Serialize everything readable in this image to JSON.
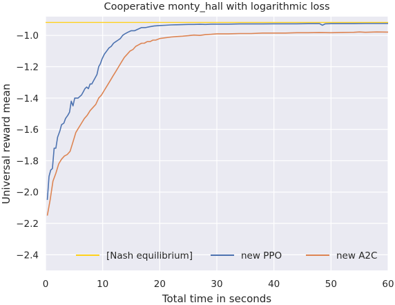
{
  "chart_data": {
    "type": "line",
    "title": "Cooperative monty_hall with logarithmic loss",
    "xlabel": "Total time in seconds",
    "ylabel": "Universal reward mean",
    "xlim": [
      0,
      60
    ],
    "ylim": [
      -2.5,
      -0.88
    ],
    "x_ticks": [
      0,
      10,
      20,
      30,
      40,
      50,
      60
    ],
    "x_tick_labels": [
      "0",
      "10",
      "20",
      "30",
      "40",
      "50",
      "60"
    ],
    "y_ticks": [
      -2.4,
      -2.2,
      -2.0,
      -1.8,
      -1.6,
      -1.4,
      -1.2,
      -1.0
    ],
    "y_tick_labels": [
      "−2.4",
      "−2.2",
      "−2.0",
      "−1.8",
      "−1.6",
      "−1.4",
      "−1.2",
      "−1.0"
    ],
    "grid": true,
    "legend_position": "lower-right",
    "colors": {
      "background": "#eaeaf2",
      "grid": "#ffffff"
    },
    "series": [
      {
        "name": "[Nash equilibrium]",
        "color": "#ffd11a",
        "x": [
          0,
          60
        ],
        "y": [
          -0.917,
          -0.917
        ]
      },
      {
        "name": "new PPO",
        "color": "#4c72b0",
        "x": [
          0.3,
          0.6,
          0.9,
          1.2,
          1.5,
          1.8,
          2.1,
          2.5,
          2.8,
          3.2,
          3.5,
          3.9,
          4.2,
          4.5,
          4.8,
          5.1,
          5.4,
          5.7,
          6.0,
          6.3,
          6.6,
          6.9,
          7.2,
          7.5,
          7.8,
          8.1,
          8.4,
          8.7,
          9.0,
          9.3,
          9.6,
          9.9,
          10.3,
          10.7,
          11.1,
          11.5,
          11.9,
          12.3,
          12.7,
          13.1,
          13.5,
          13.9,
          14.4,
          15.0,
          15.6,
          16.2,
          16.8,
          17.5,
          18.2,
          19.0,
          20.0,
          21.0,
          22.0,
          23.0,
          24.0,
          25.0,
          26.0,
          27.0,
          28.0,
          29.0,
          30.0,
          32.0,
          34.0,
          36.0,
          38.0,
          40.0,
          42.0,
          44.0,
          46.0,
          48.0,
          48.5,
          49.0,
          50.0,
          52.0,
          54.0,
          56.0,
          58.0,
          60.0
        ],
        "y": [
          -2.05,
          -1.9,
          -1.86,
          -1.85,
          -1.72,
          -1.72,
          -1.65,
          -1.61,
          -1.57,
          -1.56,
          -1.53,
          -1.51,
          -1.49,
          -1.42,
          -1.45,
          -1.4,
          -1.4,
          -1.4,
          -1.39,
          -1.38,
          -1.36,
          -1.34,
          -1.33,
          -1.34,
          -1.31,
          -1.31,
          -1.29,
          -1.27,
          -1.25,
          -1.2,
          -1.18,
          -1.15,
          -1.12,
          -1.1,
          -1.08,
          -1.07,
          -1.05,
          -1.04,
          -1.03,
          -1.02,
          -1.0,
          -0.99,
          -0.98,
          -0.97,
          -0.97,
          -0.96,
          -0.95,
          -0.95,
          -0.945,
          -0.94,
          -0.937,
          -0.935,
          -0.933,
          -0.932,
          -0.931,
          -0.93,
          -0.93,
          -0.929,
          -0.93,
          -0.928,
          -0.928,
          -0.928,
          -0.927,
          -0.927,
          -0.927,
          -0.926,
          -0.926,
          -0.926,
          -0.925,
          -0.925,
          -0.935,
          -0.926,
          -0.925,
          -0.925,
          -0.925,
          -0.924,
          -0.924,
          -0.924
        ]
      },
      {
        "name": "new A2C",
        "color": "#dd8452",
        "x": [
          0.3,
          0.8,
          1.3,
          1.8,
          2.3,
          2.8,
          3.3,
          3.8,
          4.3,
          4.8,
          5.3,
          5.8,
          6.3,
          6.8,
          7.3,
          7.8,
          8.3,
          8.8,
          9.3,
          9.8,
          10.3,
          10.8,
          11.3,
          11.8,
          12.3,
          12.8,
          13.3,
          13.8,
          14.3,
          14.8,
          15.3,
          15.8,
          16.3,
          16.8,
          17.3,
          17.8,
          18.3,
          18.8,
          19.3,
          20.0,
          21.0,
          22.0,
          23.0,
          24.0,
          25.0,
          26.0,
          27.0,
          28.0,
          29.0,
          30.0,
          32.0,
          34.0,
          36.0,
          38.0,
          40.0,
          42.0,
          44.0,
          46.0,
          48.0,
          50.0,
          52.0,
          54.0,
          55.0,
          56.0,
          58.0,
          60.0
        ],
        "y": [
          -2.15,
          -2.05,
          -1.93,
          -1.88,
          -1.82,
          -1.79,
          -1.77,
          -1.76,
          -1.74,
          -1.68,
          -1.62,
          -1.59,
          -1.56,
          -1.53,
          -1.51,
          -1.48,
          -1.46,
          -1.44,
          -1.4,
          -1.38,
          -1.35,
          -1.32,
          -1.29,
          -1.26,
          -1.23,
          -1.2,
          -1.17,
          -1.14,
          -1.12,
          -1.1,
          -1.09,
          -1.07,
          -1.06,
          -1.05,
          -1.05,
          -1.04,
          -1.04,
          -1.03,
          -1.03,
          -1.02,
          -1.015,
          -1.01,
          -1.007,
          -1.005,
          -1.002,
          -0.998,
          -1.0,
          -0.995,
          -0.993,
          -0.99,
          -0.99,
          -0.988,
          -0.988,
          -0.985,
          -0.985,
          -0.985,
          -0.983,
          -0.983,
          -0.982,
          -0.983,
          -0.981,
          -0.98,
          -0.978,
          -0.98,
          -0.978,
          -0.979
        ]
      }
    ]
  }
}
